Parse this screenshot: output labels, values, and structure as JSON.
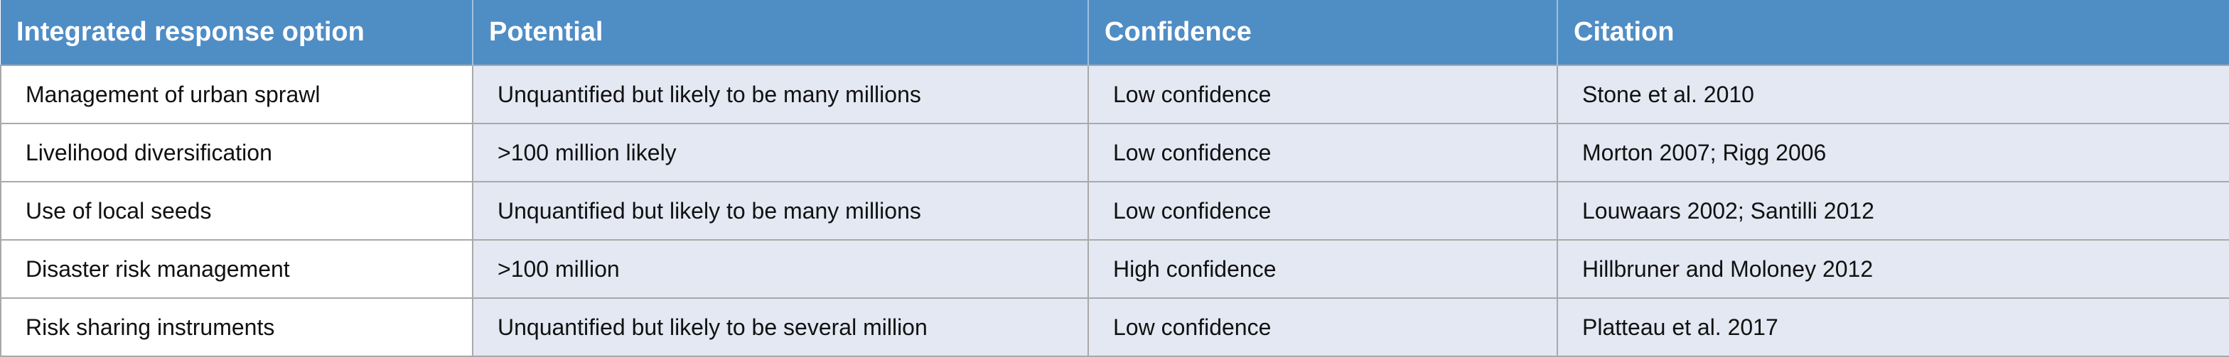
{
  "table": {
    "header": [
      "Integrated response option",
      "Potential",
      "Confidence",
      "Citation"
    ],
    "rows": [
      [
        "Management of urban sprawl",
        "Unquantified but likely to be many millions",
        "Low confidence",
        "Stone et al. 2010"
      ],
      [
        "Livelihood diversification",
        ">100 million likely",
        "Low confidence",
        "Morton 2007; Rigg 2006"
      ],
      [
        "Use of local seeds",
        "Unquantified but likely to be many millions",
        "Low confidence",
        "Louwaars 2002; Santilli 2012"
      ],
      [
        "Disaster risk management",
        ">100 million",
        "High confidence",
        "Hillbruner and Moloney 2012"
      ],
      [
        "Risk sharing instruments",
        "Unquantified but likely to be several million",
        "Low confidence",
        "Platteau et al. 2017"
      ]
    ]
  }
}
